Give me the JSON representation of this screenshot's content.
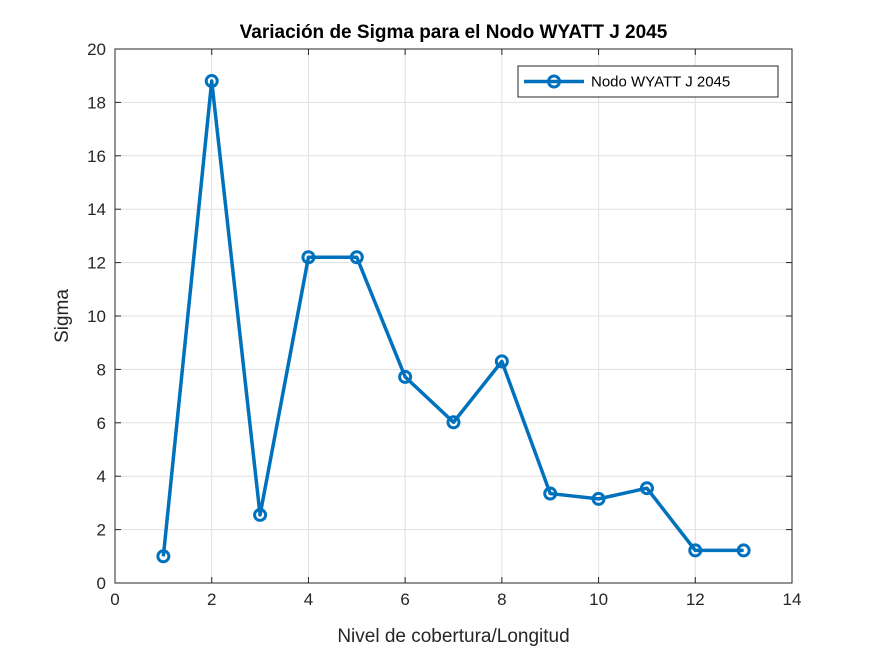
{
  "chart_data": {
    "type": "line",
    "title": "Variación de Sigma para el Nodo WYATT J 2045",
    "xlabel": "Nivel de cobertura/Longitud",
    "ylabel": "Sigma",
    "xlim": [
      0,
      14
    ],
    "ylim": [
      0,
      20
    ],
    "xticks": [
      0,
      2,
      4,
      6,
      8,
      10,
      12,
      14
    ],
    "yticks": [
      0,
      2,
      4,
      6,
      8,
      10,
      12,
      14,
      16,
      18,
      20
    ],
    "grid": true,
    "legend_position": "top-right",
    "series": [
      {
        "name": "Nodo WYATT J 2045",
        "color": "#0072BD",
        "marker": "circle",
        "x": [
          1,
          2,
          3,
          4,
          5,
          6,
          7,
          8,
          9,
          10,
          11,
          12,
          13
        ],
        "y": [
          1.0,
          18.8,
          2.55,
          12.2,
          12.2,
          7.72,
          6.02,
          8.3,
          3.35,
          3.15,
          3.55,
          1.22,
          1.22
        ]
      }
    ]
  }
}
